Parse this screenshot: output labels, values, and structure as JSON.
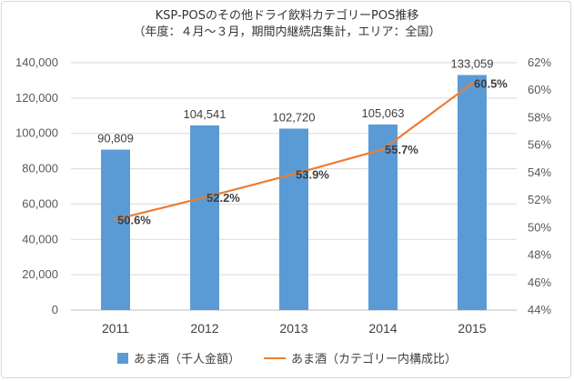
{
  "chart_data": {
    "type": "bar+line",
    "title": "KSP-POSのその他ドライ飲料カテゴリーPOS推移",
    "subtitle": "（年度：４月～３月，期間内継続店集計，エリア：全国）",
    "categories": [
      "2011",
      "2012",
      "2013",
      "2014",
      "2015"
    ],
    "series": [
      {
        "name": "あま酒（千人金額）",
        "type": "bar",
        "axis": "left",
        "color": "#5B9BD5",
        "values": [
          90809,
          104541,
          102720,
          105063,
          133059
        ],
        "labels": [
          "90,809",
          "104,541",
          "102,720",
          "105,063",
          "133,059"
        ]
      },
      {
        "name": "あま酒（カテゴリー内構成比）",
        "type": "line",
        "axis": "right",
        "color": "#ED7D31",
        "values": [
          50.6,
          52.2,
          53.9,
          55.7,
          60.5
        ],
        "labels": [
          "50.6%",
          "52.2%",
          "53.9%",
          "55.7%",
          "60.5%"
        ]
      }
    ],
    "y_left": {
      "range": [
        0,
        140000
      ],
      "ticks": [
        "0",
        "20,000",
        "40,000",
        "60,000",
        "80,000",
        "100,000",
        "120,000",
        "140,000"
      ]
    },
    "y_right": {
      "range": [
        44,
        62
      ],
      "ticks": [
        "44%",
        "46%",
        "48%",
        "50%",
        "52%",
        "54%",
        "56%",
        "58%",
        "60%",
        "62%"
      ]
    },
    "grid": true,
    "legend": "bottom"
  }
}
